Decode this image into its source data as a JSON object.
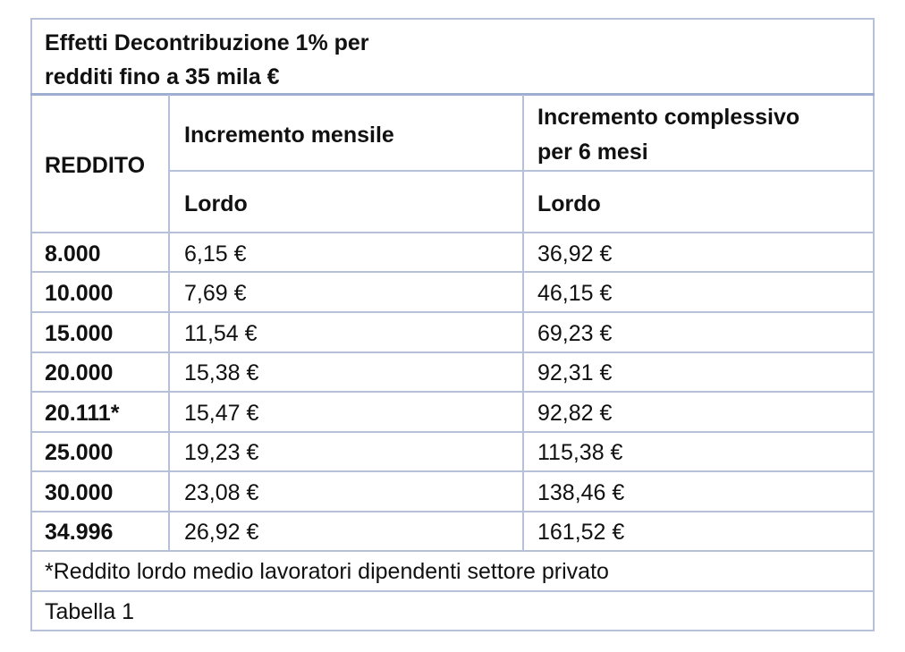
{
  "table": {
    "title_line1": "Effetti Decontribuzione 1% per",
    "title_line2": "redditi fino a 35 mila €",
    "header": {
      "reddito": "REDDITO",
      "mensile": "Incremento mensile",
      "complessivo_line1": "Incremento complessivo",
      "complessivo_line2": "per 6 mesi",
      "lordo_mensile": "Lordo",
      "lordo_complessivo": "Lordo"
    },
    "rows": [
      {
        "reddito": "8.000",
        "mensile": "6,15 €",
        "complessivo": "36,92 €"
      },
      {
        "reddito": "10.000",
        "mensile": "7,69 €",
        "complessivo": "46,15 €"
      },
      {
        "reddito": "15.000",
        "mensile": "11,54 €",
        "complessivo": "69,23 €"
      },
      {
        "reddito": "20.000",
        "mensile": "15,38 €",
        "complessivo": "92,31 €"
      },
      {
        "reddito": "20.111*",
        "mensile": "15,47 €",
        "complessivo": "92,82 €"
      },
      {
        "reddito": "25.000",
        "mensile": "19,23 €",
        "complessivo": "115,38 €"
      },
      {
        "reddito": "30.000",
        "mensile": "23,08 €",
        "complessivo": "138,46 €"
      },
      {
        "reddito": "34.996",
        "mensile": "26,92 €",
        "complessivo": "161,52 €"
      }
    ],
    "footnote": "*Reddito lordo medio lavoratori dipendenti settore privato",
    "caption": "Tabella 1"
  }
}
